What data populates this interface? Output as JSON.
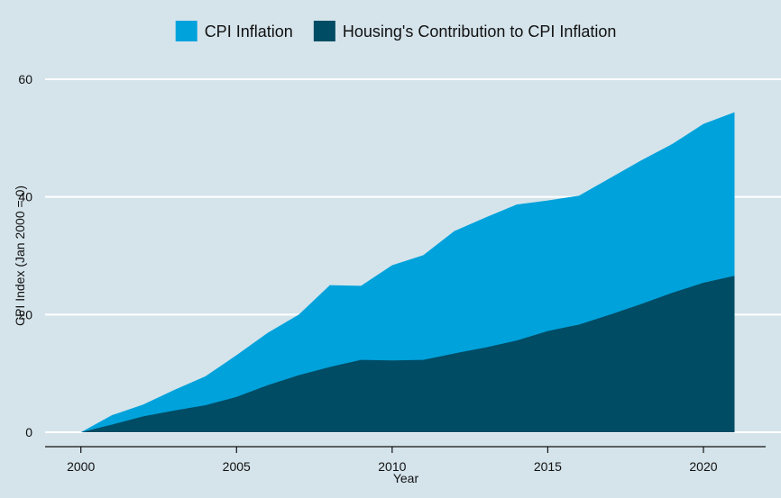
{
  "chart_data": {
    "type": "area",
    "stacked": false,
    "x": [
      2000,
      2001,
      2002,
      2003,
      2004,
      2005,
      2006,
      2007,
      2008,
      2009,
      2010,
      2011,
      2012,
      2013,
      2014,
      2015,
      2016,
      2017,
      2018,
      2019,
      2020,
      2021
    ],
    "series": [
      {
        "name": "CPI Inflation",
        "color": "#00a2db",
        "values": [
          0,
          2.9,
          4.7,
          7.2,
          9.5,
          13.1,
          16.9,
          20.0,
          25.0,
          24.9,
          28.4,
          30.1,
          34.2,
          36.5,
          38.7,
          39.4,
          40.2,
          43.2,
          46.2,
          49.0,
          52.4,
          54.4
        ]
      },
      {
        "name": "Housing's Contribution to CPI Inflation",
        "color": "#004c64",
        "values": [
          0,
          1.3,
          2.7,
          3.7,
          4.6,
          6.0,
          8.0,
          9.7,
          11.1,
          12.3,
          12.2,
          12.3,
          13.4,
          14.4,
          15.6,
          17.2,
          18.3,
          20.0,
          21.8,
          23.7,
          25.4,
          26.6
        ]
      }
    ],
    "xlabel": "Year",
    "ylabel": "CPI Index (Jan 2000 = 0)",
    "xlim": [
      1998.85,
      2022.0
    ],
    "ylim": [
      0,
      60
    ],
    "xticks": [
      2000,
      2005,
      2010,
      2015,
      2020
    ],
    "yticks": [
      0,
      20,
      40,
      60
    ],
    "grid": "horizontal",
    "legend_position": "top"
  }
}
